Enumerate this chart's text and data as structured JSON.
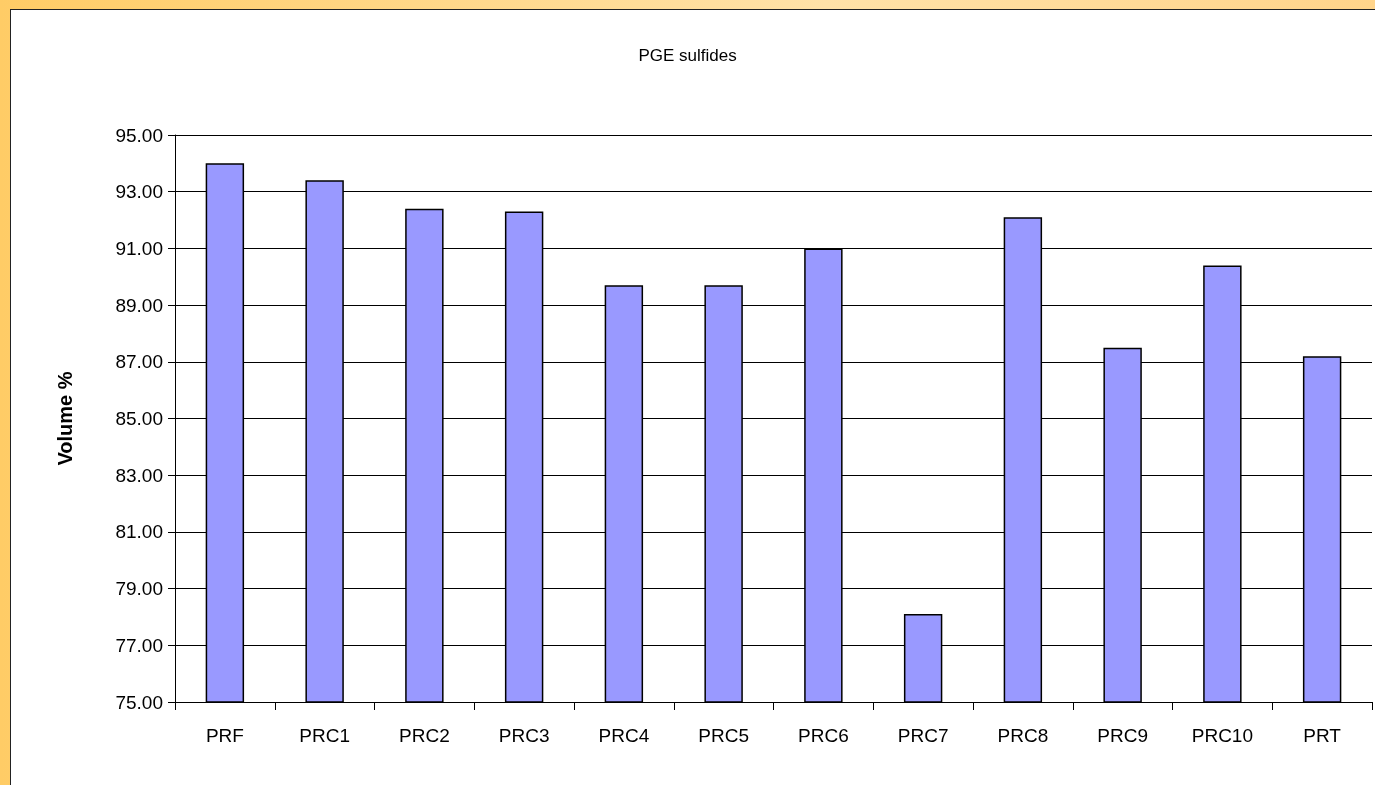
{
  "chart_data": {
    "type": "bar",
    "title": "PGE sulfides",
    "ylabel": "Volume %",
    "categories": [
      "PRF",
      "PRC1",
      "PRC2",
      "PRC3",
      "PRC4",
      "PRC5",
      "PRC6",
      "PRC7",
      "PRC8",
      "PRC9",
      "PRC10",
      "PRT"
    ],
    "values": [
      94.0,
      93.4,
      92.4,
      92.3,
      89.7,
      89.7,
      91.0,
      78.1,
      92.1,
      87.5,
      90.4,
      87.2
    ],
    "color": "#9999ff",
    "ylim": [
      75,
      95
    ],
    "yticks": [
      {
        "value": 75,
        "label": "75.00"
      },
      {
        "value": 77,
        "label": "77.00"
      },
      {
        "value": 79,
        "label": "79.00"
      },
      {
        "value": 81,
        "label": "81.00"
      },
      {
        "value": 83,
        "label": "83.00"
      },
      {
        "value": 85,
        "label": "85.00"
      },
      {
        "value": 87,
        "label": "87.00"
      },
      {
        "value": 89,
        "label": "89.00"
      },
      {
        "value": 91,
        "label": "91.00"
      },
      {
        "value": 93,
        "label": "93.00"
      },
      {
        "value": 95,
        "label": "95.00"
      }
    ],
    "grid": "y"
  }
}
